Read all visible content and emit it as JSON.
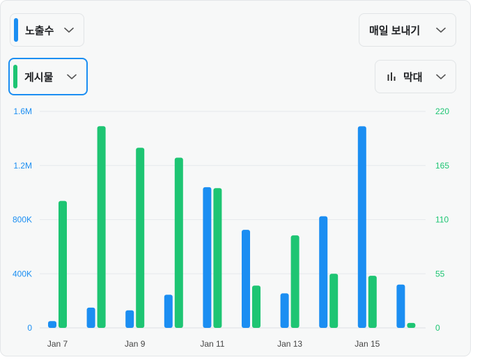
{
  "controls": {
    "metric_primary": {
      "label": "노출수",
      "color": "#1b8ef2",
      "icon": "chevron-down"
    },
    "metric_secondary": {
      "label": "게시물",
      "color": "#1ec573",
      "icon": "chevron-down"
    },
    "interval": {
      "label": "매일 보내기",
      "icon": "chevron-down"
    },
    "chart_type": {
      "label": "막대",
      "icon": "bar-chart"
    }
  },
  "chart_data": {
    "type": "bar",
    "categories": [
      "Jan 7",
      "Jan 8",
      "Jan 9",
      "Jan 10",
      "Jan 11",
      "Jan 12",
      "Jan 13",
      "Jan 14",
      "Jan 15",
      "Jan 16"
    ],
    "x_tick_labels": [
      "Jan 7",
      "Jan 9",
      "Jan 11",
      "Jan 13",
      "Jan 15"
    ],
    "series": [
      {
        "axis": "left",
        "color": "#1b8ef2",
        "values": [
          50000,
          150000,
          130000,
          245000,
          1040000,
          725000,
          255000,
          825000,
          1490000,
          320000
        ]
      },
      {
        "axis": "right",
        "color": "#1ec573",
        "values": [
          129,
          205,
          183,
          173,
          142,
          43,
          94,
          55,
          53,
          5
        ]
      }
    ],
    "y_left": {
      "min": 0,
      "max": 1600000,
      "ticks": [
        "0",
        "400K",
        "800K",
        "1.2M",
        "1.6M"
      ]
    },
    "y_right": {
      "min": 0,
      "max": 220,
      "ticks": [
        "0",
        "55",
        "110",
        "165",
        "220"
      ]
    },
    "grid": true
  }
}
